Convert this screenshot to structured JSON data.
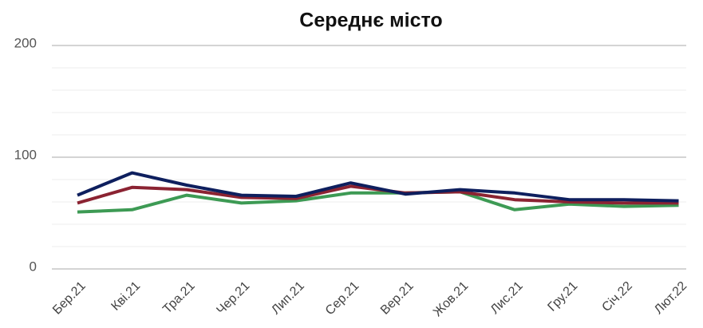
{
  "chart_data": {
    "type": "line",
    "title": "Середнє місто",
    "categories": [
      "Бер.21",
      "Кві.21",
      "Тра.21",
      "Чер.21",
      "Лип.21",
      "Сер.21",
      "Вер.21",
      "Жов.21",
      "Лис.21",
      "Гру.21",
      "Січ.22",
      "Лют.22"
    ],
    "series": [
      {
        "color": "#3d9a54",
        "values": [
          51,
          53,
          66,
          59,
          61,
          68,
          68,
          69,
          53,
          58,
          56,
          57
        ]
      },
      {
        "color": "#8b2332",
        "values": [
          59,
          73,
          71,
          64,
          63,
          74,
          68,
          69,
          62,
          60,
          59,
          59
        ]
      },
      {
        "color": "#0e1f5e",
        "values": [
          66,
          86,
          75,
          66,
          65,
          77,
          67,
          71,
          68,
          62,
          62,
          61
        ]
      }
    ],
    "ylim": [
      0,
      200
    ],
    "yticks": [
      0,
      100,
      200
    ],
    "minor_yticks": [
      20,
      40,
      60,
      80,
      120,
      140,
      160,
      180
    ],
    "grid": true
  }
}
